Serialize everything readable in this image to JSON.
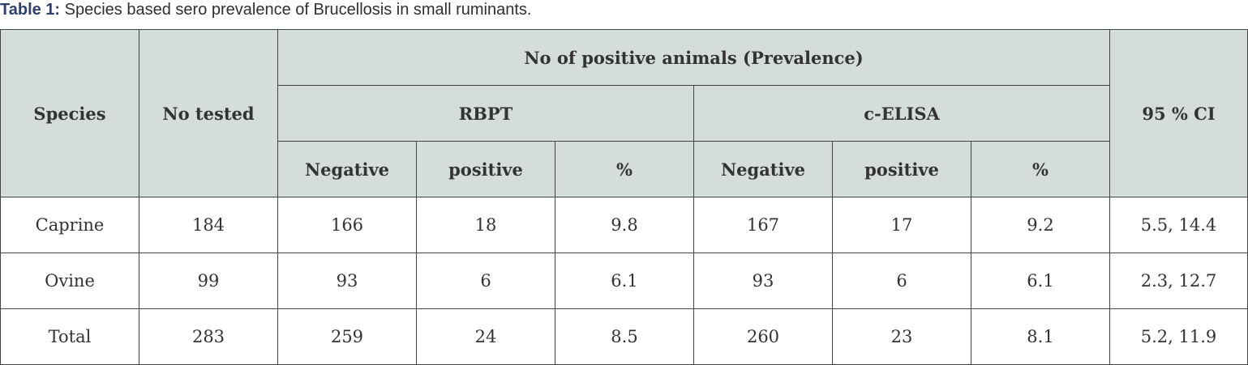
{
  "caption": {
    "label": "Table 1:",
    "text": " Species based sero prevalence of Brucellosis in small ruminants."
  },
  "table": {
    "headers": {
      "species": "Species",
      "no_tested": "No tested",
      "group": "No of positive animals (Prevalence)",
      "rbpt": "RBPT",
      "celisa": "c-ELISA",
      "ci": "95 % CI",
      "sub": [
        "Negative",
        "positive",
        "%",
        "Negative",
        "positive",
        "%"
      ]
    },
    "rows": [
      [
        "Caprine",
        "184",
        "166",
        "18",
        "9.8",
        "167",
        "17",
        "9.2",
        "5.5, 14.4"
      ],
      [
        "Ovine",
        "99",
        "93",
        "6",
        "6.1",
        "93",
        "6",
        "6.1",
        "2.3, 12.7"
      ],
      [
        "Total",
        "283",
        "259",
        "24",
        "8.5",
        "260",
        "23",
        "8.1",
        "5.2, 11.9"
      ]
    ]
  }
}
